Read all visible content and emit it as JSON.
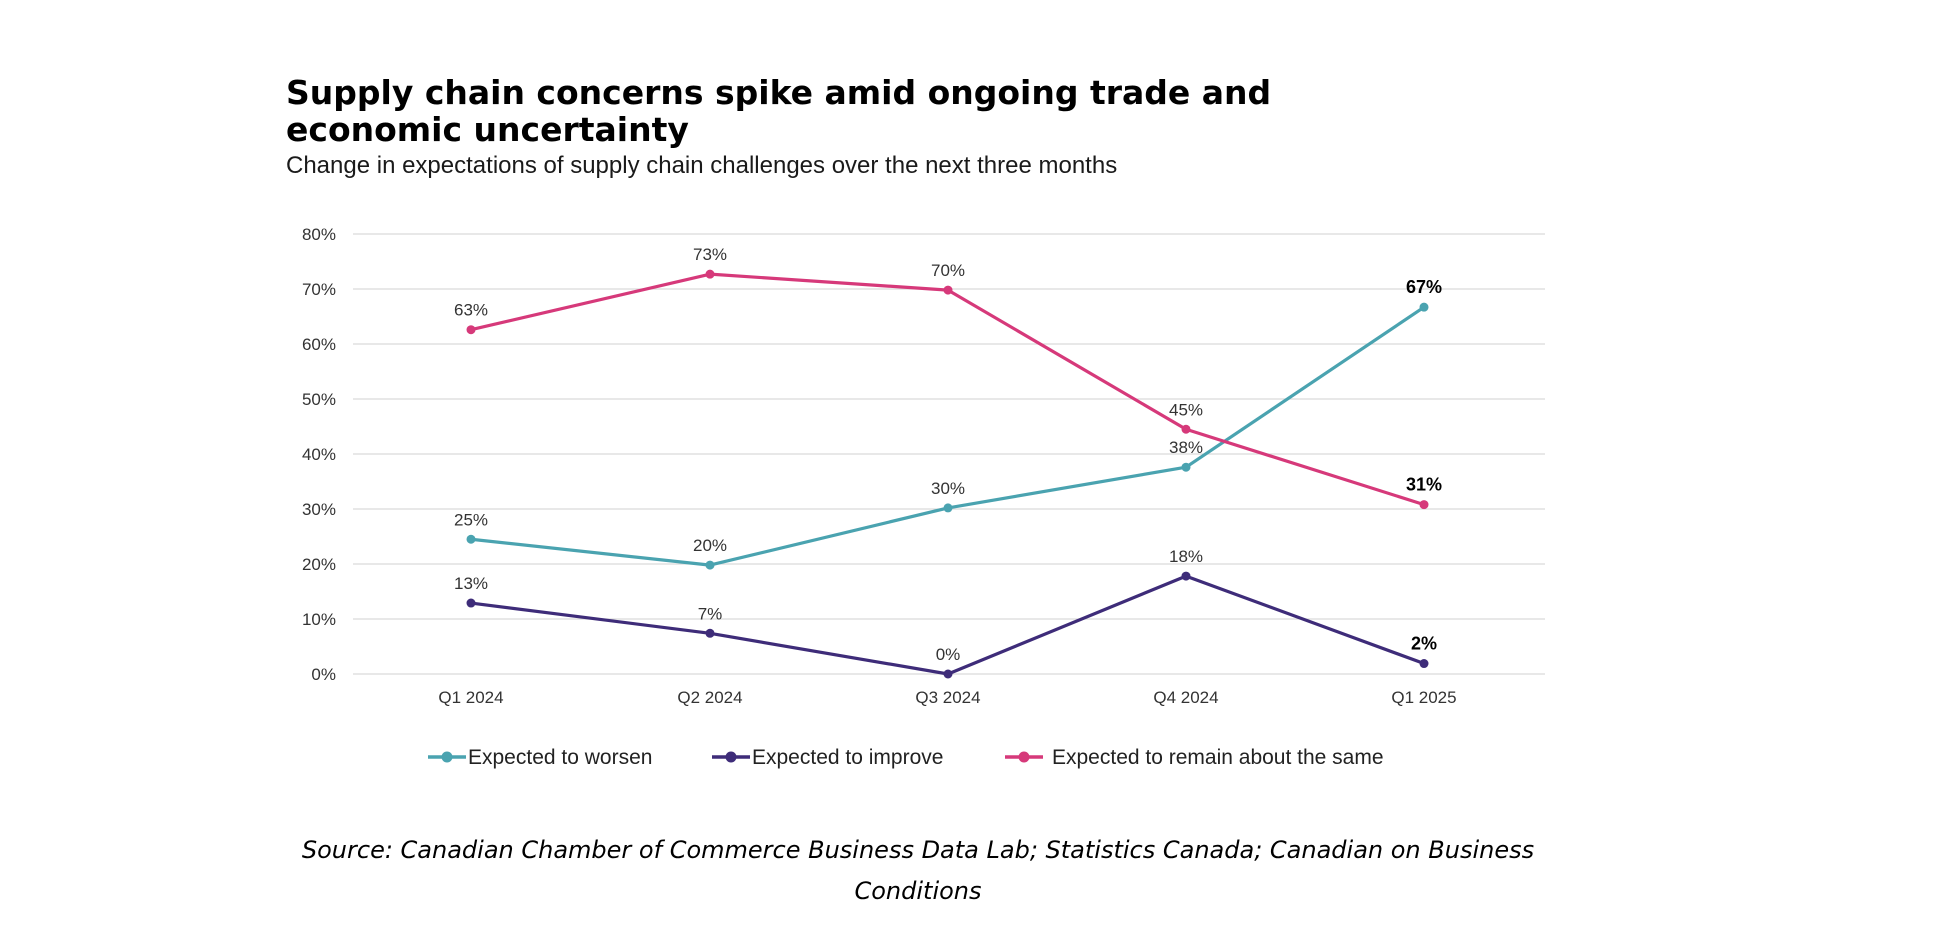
{
  "chart_data": {
    "type": "line",
    "title_lines": [
      "Supply chain concerns spike amid ongoing trade and",
      "economic uncertainty"
    ],
    "subtitle": "Change in expectations of supply chain challenges over the next three months",
    "categories": [
      "Q1 2024",
      "Q2 2024",
      "Q3 2024",
      "Q4 2024",
      "Q1 2025"
    ],
    "ylim": [
      0,
      80
    ],
    "yticks": [
      0,
      10,
      20,
      30,
      40,
      50,
      60,
      70,
      80
    ],
    "ytick_labels": [
      "0%",
      "10%",
      "20%",
      "30%",
      "40%",
      "50%",
      "60%",
      "70%",
      "80%"
    ],
    "grid": true,
    "legend_position": "bottom",
    "series": [
      {
        "name": "Expected to worsen",
        "color": "#4aa3b0",
        "values": [
          24.5,
          19.8,
          30.2,
          37.6,
          66.7
        ],
        "labels": [
          "25%",
          "20%",
          "30%",
          "38%",
          "67%"
        ]
      },
      {
        "name": "Expected to improve",
        "color": "#3e2c79",
        "values": [
          12.9,
          7.4,
          0,
          17.8,
          1.9
        ],
        "labels": [
          "13%",
          "7%",
          "0%",
          "18%",
          "2%"
        ]
      },
      {
        "name": "Expected to remain about the same",
        "color": "#d6397a",
        "values": [
          62.6,
          72.7,
          69.8,
          44.5,
          30.8
        ],
        "labels": [
          "63%",
          "73%",
          "70%",
          "45%",
          "31%"
        ]
      }
    ],
    "source_lines": [
      "Source: Canadian Chamber of Commerce Business Data Lab; Statistics Canada; Canadian on Business",
      "Conditions"
    ]
  }
}
